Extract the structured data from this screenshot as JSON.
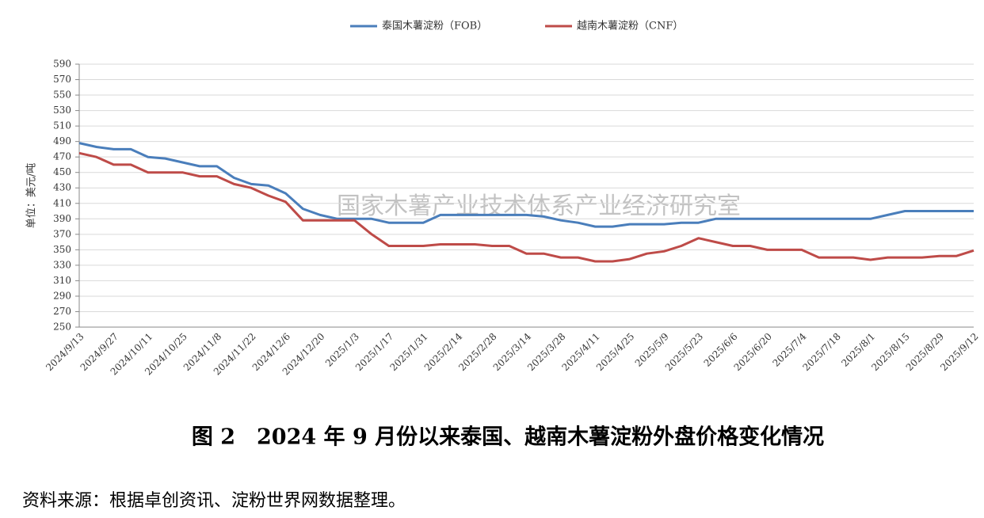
{
  "chart_data": {
    "type": "line",
    "y_label": "单位：美元/吨",
    "watermark": "国家木薯产业技术体系产业经济研究室",
    "caption": "图 2　2024 年 9 月份以来泰国、越南木薯淀粉外盘价格变化情况",
    "source": "资料来源：根据卓创资讯、淀粉世界网数据整理。",
    "categories": [
      "2024/9/13",
      null,
      "2024/9/27",
      null,
      "2024/10/11",
      null,
      "2024/10/25",
      null,
      "2024/11/8",
      null,
      "2024/11/22",
      null,
      "2024/12/6",
      null,
      "2024/12/20",
      null,
      "2025/1/3",
      null,
      "2025/1/17",
      null,
      "2025/1/31",
      null,
      "2025/2/14",
      null,
      "2025/2/28",
      null,
      "2025/3/14",
      null,
      "2025/3/28",
      null,
      "2025/4/11",
      null,
      "2025/4/25",
      null,
      "2025/5/9",
      null,
      "2025/5/23",
      null,
      "2025/6/6",
      null,
      "2025/6/20",
      null,
      "2025/7/4",
      null,
      "2025/7/18",
      null,
      "2025/8/1",
      null,
      "2025/8/15",
      null,
      "2025/8/29",
      null,
      "2025/9/12"
    ],
    "series": [
      {
        "name": "泰国木薯淀粉（FOB）",
        "color": "#4a7ebb",
        "values": [
          488,
          483,
          480,
          480,
          470,
          468,
          463,
          458,
          458,
          443,
          435,
          433,
          423,
          403,
          395,
          390,
          390,
          390,
          385,
          385,
          385,
          395,
          395,
          395,
          395,
          395,
          395,
          393,
          388,
          385,
          380,
          380,
          383,
          383,
          383,
          385,
          385,
          390,
          390,
          390,
          390,
          390,
          390,
          390,
          390,
          390,
          390,
          395,
          400,
          400,
          400,
          400,
          400
        ]
      },
      {
        "name": "越南木薯淀粉（CNF）",
        "color": "#be4b48",
        "values": [
          475,
          470,
          460,
          460,
          450,
          450,
          450,
          445,
          445,
          435,
          430,
          420,
          412,
          388,
          388,
          388,
          388,
          370,
          355,
          355,
          355,
          357,
          357,
          357,
          355,
          355,
          345,
          345,
          340,
          340,
          335,
          335,
          338,
          345,
          348,
          355,
          365,
          360,
          355,
          355,
          350,
          350,
          350,
          340,
          340,
          340,
          337,
          340,
          340,
          340,
          342,
          342,
          349
        ]
      }
    ],
    "ylim": [
      250,
      590
    ],
    "yticks": [
      250,
      270,
      290,
      310,
      330,
      350,
      370,
      390,
      410,
      430,
      450,
      470,
      490,
      510,
      530,
      550,
      570,
      590
    ],
    "grid": true
  }
}
